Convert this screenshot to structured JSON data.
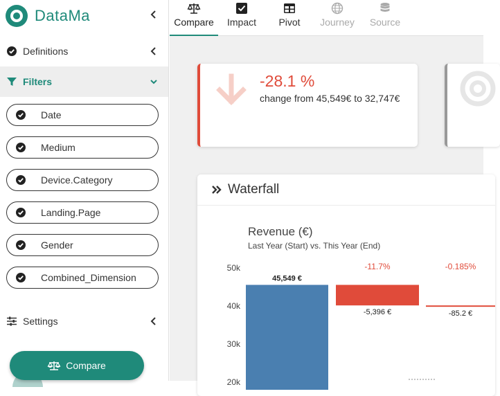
{
  "brand": {
    "name": "DataMa",
    "accent": "#1f8a7a"
  },
  "sidebar": {
    "definitions_label": "Definitions",
    "filters_label": "Filters",
    "settings_label": "Settings",
    "filters": [
      {
        "label": "Date",
        "checked": true
      },
      {
        "label": "Medium",
        "checked": true
      },
      {
        "label": "Device.Category",
        "checked": true
      },
      {
        "label": "Landing.Page",
        "checked": true
      },
      {
        "label": "Gender",
        "checked": true
      },
      {
        "label": "Combined_Dimension",
        "checked": true
      }
    ],
    "compare_button": "Compare"
  },
  "tabs": [
    {
      "label": "Compare",
      "icon": "balance-scale-icon",
      "state": "active"
    },
    {
      "label": "Impact",
      "icon": "check-square-icon",
      "state": "normal"
    },
    {
      "label": "Pivot",
      "icon": "table-icon",
      "state": "normal"
    },
    {
      "label": "Journey",
      "icon": "globe-icon",
      "state": "disabled"
    },
    {
      "label": "Source",
      "icon": "database-icon",
      "state": "disabled"
    }
  ],
  "kpi": {
    "value": "-28.1 %",
    "description": "change from 45,549€ to 32,747€",
    "color": "#e04b3a",
    "icon": "arrow-down-icon"
  },
  "waterfall_card": {
    "title": "Waterfall",
    "icon": "double-chevron-right-icon"
  },
  "chart_data": {
    "type": "bar",
    "subtype": "waterfall",
    "title": "Revenue (€)",
    "subtitle": "Last Year (Start) vs. This Year (End)",
    "y_ticks": [
      "50k",
      "40k",
      "30k",
      "20k"
    ],
    "ylim": [
      20000,
      50000
    ],
    "bars": [
      {
        "kind": "start",
        "start": 0,
        "end": 45549,
        "value_label": "45,549 €",
        "pct_label": "",
        "color": "#4a7fb0"
      },
      {
        "kind": "delta",
        "start": 45549,
        "end": 40153,
        "value_label": "-5,396 €",
        "pct_label": "-11.7%",
        "color": "#e04b3a"
      },
      {
        "kind": "delta",
        "start": 40153,
        "end": 40068,
        "value_label": "-85.2 €",
        "pct_label": "-0.185%",
        "color": "#e04b3a"
      }
    ]
  }
}
